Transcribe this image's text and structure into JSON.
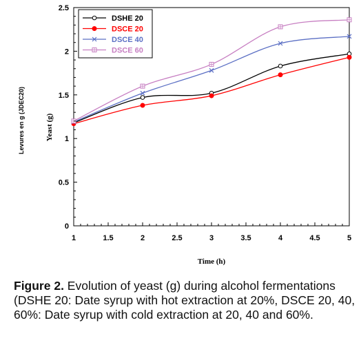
{
  "chart_data": {
    "type": "line",
    "title": "",
    "xlabel": "Time (h)",
    "ylabel": "Yeast (g)",
    "side_label": "Levures en g  (JDEC20)",
    "xlim": [
      1,
      5
    ],
    "ylim": [
      0,
      2.5
    ],
    "x_ticks": [
      "1",
      "1.5",
      "2",
      "2.5",
      "3",
      "3.5",
      "4",
      "4.5",
      "5"
    ],
    "y_ticks": [
      "0",
      "0.5",
      "1",
      "1.5",
      "2",
      "2.5"
    ],
    "x": [
      1,
      2,
      3,
      4,
      5
    ],
    "grid": false,
    "legend_position": "top-left",
    "series": [
      {
        "name": "DSHE 20",
        "color": "#000000",
        "marker": "open-circle",
        "values": [
          1.18,
          1.47,
          1.52,
          1.83,
          1.97
        ]
      },
      {
        "name": "DSCE 20",
        "color": "#ff0000",
        "marker": "filled-circle",
        "values": [
          1.17,
          1.38,
          1.49,
          1.73,
          1.93
        ]
      },
      {
        "name": "DSCE 40",
        "color": "#5b6fc4",
        "marker": "x",
        "values": [
          1.19,
          1.52,
          1.78,
          2.09,
          2.17
        ]
      },
      {
        "name": "DSCE 60",
        "color": "#c77fc2",
        "marker": "square",
        "values": [
          1.2,
          1.6,
          1.85,
          2.28,
          2.36
        ]
      }
    ]
  },
  "caption": {
    "label": "Figure 2.",
    "text": " Evolution of yeast (g) during alcohol fermentations (DSHE 20: Date syrup with hot extraction at 20%, DSCE 20, 40, 60%: Date syrup with cold extraction at 20, 40 and 60%."
  }
}
